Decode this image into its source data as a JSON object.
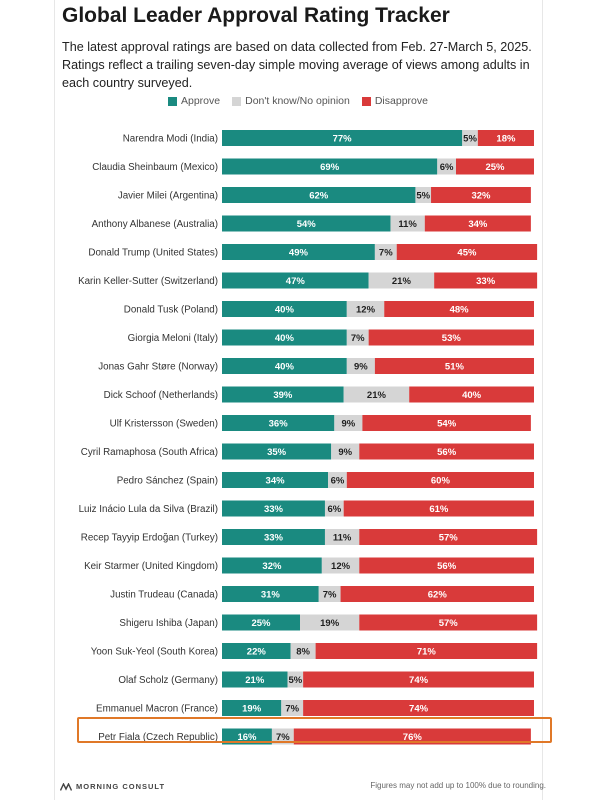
{
  "chart_data": {
    "type": "bar",
    "orientation": "horizontal",
    "stacked": true,
    "title": "Global Leader Approval Rating Tracker",
    "subtitle": "The latest approval ratings are based on data collected from Feb. 27-March 5, 2025. Ratings reflect a trailing seven-day simple moving average of views among adults in each country surveyed.",
    "xlim": [
      0,
      100
    ],
    "highlighted_category": "Petr Fiala (Czech Republic)",
    "categories": [
      "Narendra Modi (India)",
      "Claudia Sheinbaum (Mexico)",
      "Javier Milei (Argentina)",
      "Anthony Albanese (Australia)",
      "Donald Trump (United States)",
      "Karin Keller-Sutter (Switzerland)",
      "Donald Tusk (Poland)",
      "Giorgia Meloni (Italy)",
      "Jonas Gahr Støre (Norway)",
      "Dick Schoof (Netherlands)",
      "Ulf Kristersson (Sweden)",
      "Cyril Ramaphosa (South Africa)",
      "Pedro Sánchez (Spain)",
      "Luiz Inácio Lula da Silva (Brazil)",
      "Recep Tayyip Erdoğan (Turkey)",
      "Keir Starmer (United Kingdom)",
      "Justin Trudeau (Canada)",
      "Shigeru Ishiba (Japan)",
      "Yoon Suk-Yeol (South Korea)",
      "Olaf Scholz (Germany)",
      "Emmanuel Macron (France)",
      "Petr Fiala (Czech Republic)"
    ],
    "series": [
      {
        "name": "Approve",
        "color": "#1a8a80",
        "values": [
          77,
          69,
          62,
          54,
          49,
          47,
          40,
          40,
          40,
          39,
          36,
          35,
          34,
          33,
          33,
          32,
          31,
          25,
          22,
          21,
          19,
          16
        ]
      },
      {
        "name": "Don't know/No opinion",
        "color": "#d5d5d5",
        "values": [
          5,
          6,
          5,
          11,
          7,
          21,
          12,
          7,
          9,
          21,
          9,
          9,
          6,
          6,
          11,
          12,
          7,
          19,
          8,
          5,
          7,
          7
        ]
      },
      {
        "name": "Disapprove",
        "color": "#d93a3a",
        "values": [
          18,
          25,
          32,
          34,
          45,
          33,
          48,
          53,
          51,
          40,
          54,
          56,
          60,
          61,
          57,
          56,
          62,
          57,
          71,
          74,
          74,
          76
        ]
      }
    ]
  },
  "footer": {
    "brand": "MORNING CONSULT",
    "note": "Figures may not add up to 100% due to rounding."
  }
}
